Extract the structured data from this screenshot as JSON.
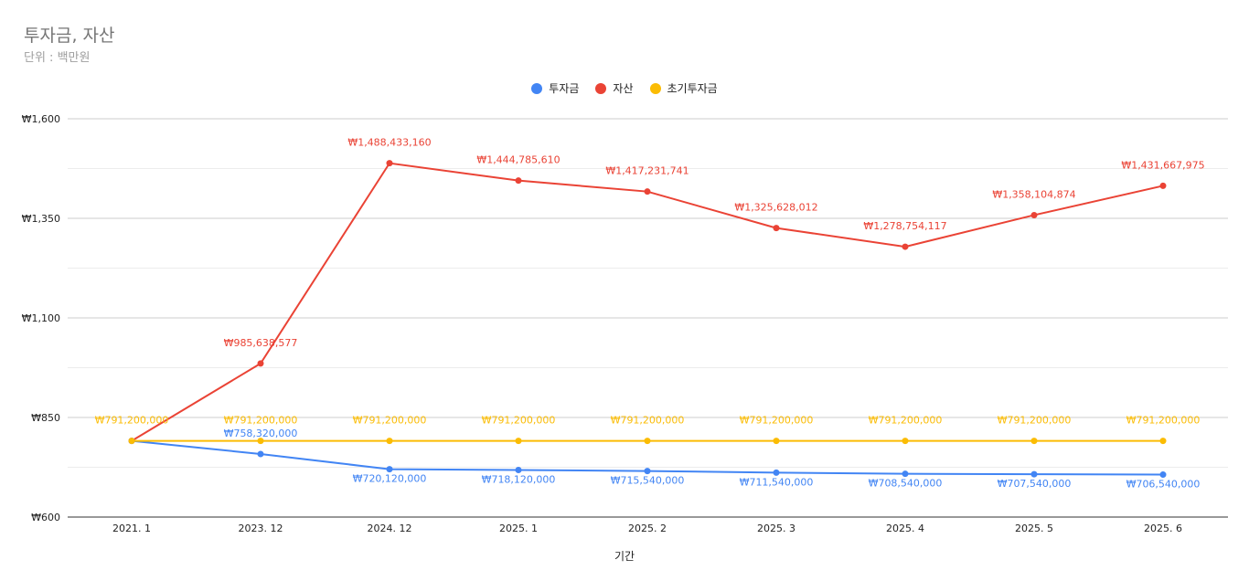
{
  "title": "투자금, 자산",
  "subtitle": "단위 : 백만원",
  "legend": [
    {
      "name": "투자금",
      "color": "#4285f4"
    },
    {
      "name": "자산",
      "color": "#ea4335"
    },
    {
      "name": "초기투자금",
      "color": "#fbbc04"
    }
  ],
  "chart_data": {
    "type": "line",
    "title": "투자금, 자산",
    "subtitle": "단위 : 백만원",
    "xlabel": "기간",
    "ylabel": "",
    "legend_position": "top",
    "grid": true,
    "categories": [
      "2021. 1",
      "2023. 12",
      "2024. 12",
      "2025. 1",
      "2025. 2",
      "2025. 3",
      "2025. 4",
      "2025. 5",
      "2025. 6"
    ],
    "yticks": [
      "₩600",
      "₩850",
      "₩1,100",
      "₩1,350",
      "₩1,600"
    ],
    "ylim": [
      600,
      1600
    ],
    "series": [
      {
        "name": "투자금",
        "color": "#4285f4",
        "values": [
          791.2,
          758.32,
          720.12,
          718.12,
          715.54,
          711.54,
          708.54,
          707.54,
          706.54
        ],
        "labels": [
          "",
          "₩758,320,000",
          "₩720,120,000",
          "₩718,120,000",
          "₩715,540,000",
          "₩711,540,000",
          "₩708,540,000",
          "₩707,540,000",
          "₩706,540,000"
        ]
      },
      {
        "name": "자산",
        "color": "#ea4335",
        "values": [
          791.2,
          985.638577,
          1488.43316,
          1444.78561,
          1417.231741,
          1325.628012,
          1278.754117,
          1358.104874,
          1431.667975
        ],
        "labels": [
          "",
          "₩985,638,577",
          "₩1,488,433,160",
          "₩1,444,785,610",
          "₩1,417,231,741",
          "₩1,325,628,012",
          "₩1,278,754,117",
          "₩1,358,104,874",
          "₩1,431,667,975"
        ]
      },
      {
        "name": "초기투자금",
        "color": "#fbbc04",
        "values": [
          791.2,
          791.2,
          791.2,
          791.2,
          791.2,
          791.2,
          791.2,
          791.2,
          791.2
        ],
        "labels": [
          "₩791,200,000",
          "₩791,200,000",
          "₩791,200,000",
          "₩791,200,000",
          "₩791,200,000",
          "₩791,200,000",
          "₩791,200,000",
          "₩791,200,000",
          "₩791,200,000"
        ]
      }
    ]
  }
}
